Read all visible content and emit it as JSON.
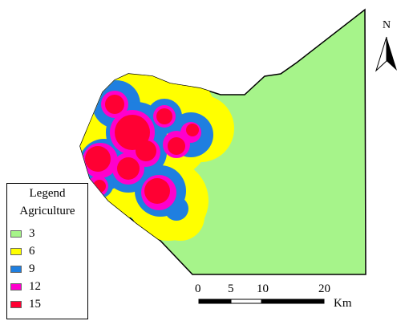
{
  "map": {
    "colors": {
      "boundary_fill": "#a6f48a",
      "boundary_stroke": "#000000",
      "class_6": "#ffff00",
      "class_9": "#1f7fe0",
      "class_12": "#ff00cc",
      "class_15": "#ff0033"
    }
  },
  "legend": {
    "title_line1": "Legend",
    "title_line2": "Agriculture",
    "items": [
      {
        "label": "3",
        "color": "#a6f48a"
      },
      {
        "label": "6",
        "color": "#ffff00"
      },
      {
        "label": "9",
        "color": "#1f7fe0"
      },
      {
        "label": "12",
        "color": "#ff00cc"
      },
      {
        "label": "15",
        "color": "#ff0033"
      }
    ]
  },
  "north_arrow": {
    "letter": "N"
  },
  "scale_bar": {
    "ticks": [
      "0",
      "5",
      "10",
      "20"
    ],
    "unit": "Km"
  }
}
